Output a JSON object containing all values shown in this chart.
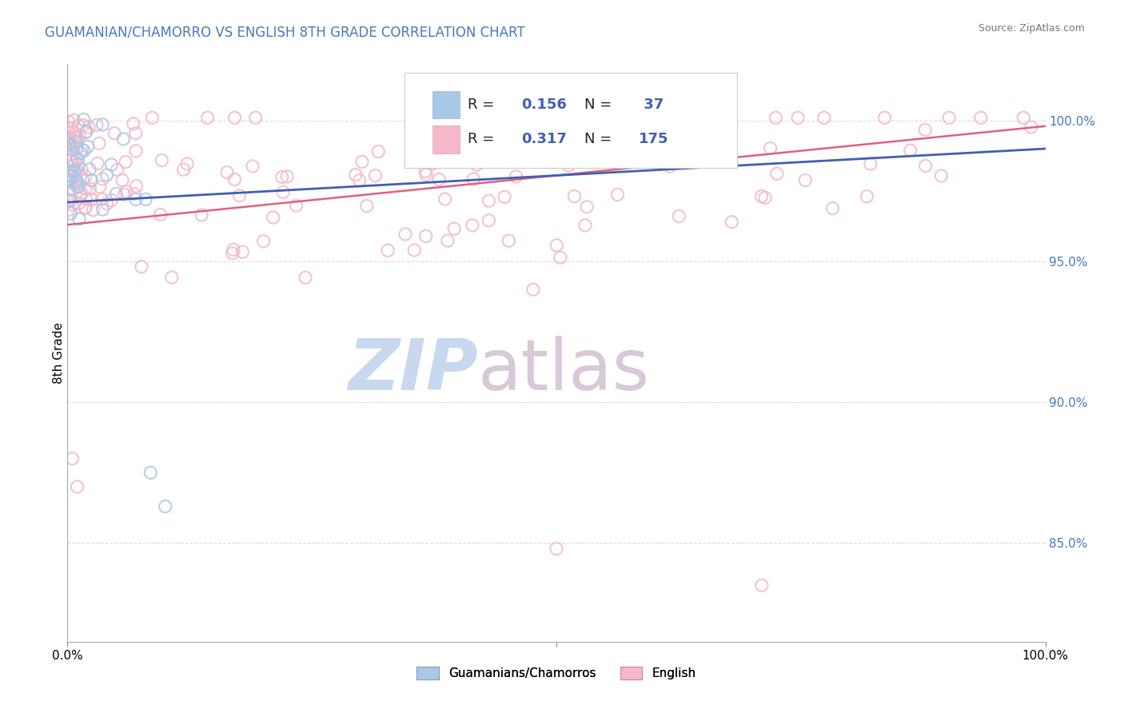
{
  "title": "GUAMANIAN/CHAMORRO VS ENGLISH 8TH GRADE CORRELATION CHART",
  "source": "Source: ZipAtlas.com",
  "ylabel": "8th Grade",
  "legend_labels": [
    "Guamanians/Chamorros",
    "English"
  ],
  "ytick_labels": [
    "100.0%",
    "95.0%",
    "90.0%",
    "85.0%"
  ],
  "ytick_values": [
    1.0,
    0.95,
    0.9,
    0.85
  ],
  "blue_R": 0.156,
  "blue_N": 37,
  "pink_R": 0.317,
  "pink_N": 175,
  "blue_color": "#a8c8e8",
  "pink_color": "#f4b8c8",
  "blue_line_color": "#4060b0",
  "pink_line_color": "#e06080",
  "title_color": "#4878c0",
  "ytick_color": "#4878c0",
  "watermark_zip_color": "#c8d8ee",
  "watermark_atlas_color": "#d8c8d8",
  "background_color": "#ffffff",
  "grid_color": "#cccccc",
  "xmin": 0.0,
  "xmax": 1.0,
  "ymin": 0.815,
  "ymax": 1.02,
  "blue_trend_x0": 0.0,
  "blue_trend_x1": 1.0,
  "blue_trend_y0": 0.971,
  "blue_trend_y1": 0.99,
  "pink_trend_x0": 0.0,
  "pink_trend_x1": 1.0,
  "pink_trend_y0": 0.963,
  "pink_trend_y1": 0.998
}
